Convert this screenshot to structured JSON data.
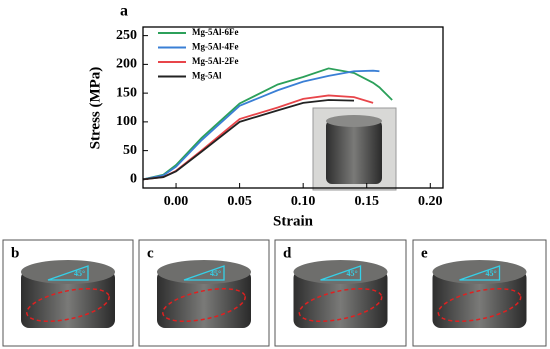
{
  "chart_data": {
    "type": "line",
    "panel_label": "a",
    "xlabel": "Strain",
    "ylabel": "Stress (MPa)",
    "x": [
      -0.026,
      -0.01,
      0,
      0.02,
      0.05,
      0.08,
      0.1,
      0.12,
      0.14,
      0.155,
      0.16,
      0.17
    ],
    "series": [
      {
        "name": "Mg-5Al-6Fe",
        "color": "#2ca05a",
        "values": [
          0,
          8,
          25,
          72,
          132,
          165,
          178,
          193,
          185,
          168,
          160,
          138
        ]
      },
      {
        "name": "Mg-5Al-4Fe",
        "color": "#3a7fd5",
        "values": [
          0,
          7,
          22,
          68,
          128,
          155,
          170,
          180,
          188,
          189,
          188,
          null
        ]
      },
      {
        "name": "Mg-5Al-2Fe",
        "color": "#e8454a",
        "values": [
          0,
          4,
          15,
          50,
          105,
          125,
          140,
          146,
          143,
          133,
          null,
          null
        ]
      },
      {
        "name": "Mg-5Al",
        "color": "#222222",
        "values": [
          0,
          4,
          14,
          48,
          100,
          120,
          133,
          138,
          137,
          null,
          null,
          null
        ]
      }
    ],
    "xlim": [
      -0.026,
      0.21
    ],
    "ylim": [
      -15,
      265
    ],
    "xticks": [
      {
        "value": 0,
        "label": "0.00"
      },
      {
        "value": 0.05,
        "label": "0.05"
      },
      {
        "value": 0.1,
        "label": "0.10"
      },
      {
        "value": 0.15,
        "label": "0.15"
      },
      {
        "value": 0.2,
        "label": "0.20"
      }
    ],
    "yticks": [
      0,
      50,
      100,
      150,
      200,
      250
    ]
  },
  "photos": [
    {
      "label": "b",
      "annotation": "45°"
    },
    {
      "label": "c",
      "annotation": "45°"
    },
    {
      "label": "d",
      "annotation": "45°"
    },
    {
      "label": "e",
      "annotation": "45°"
    }
  ]
}
